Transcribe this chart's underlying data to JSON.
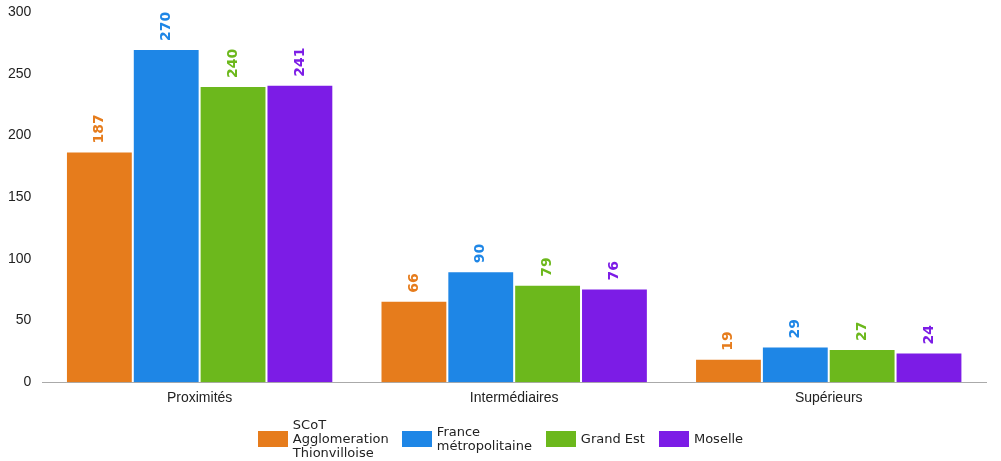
{
  "chart_data": {
    "type": "bar",
    "categories": [
      "Proximités",
      "Intermédiaires",
      "Supérieurs"
    ],
    "series": [
      {
        "name": "SCoT Agglomeration Thionvilloise",
        "color": "#e67c1c",
        "values": [
          187,
          66,
          19
        ]
      },
      {
        "name": "France métropolitaine",
        "color": "#1e86e6",
        "values": [
          270,
          90,
          29
        ]
      },
      {
        "name": "Grand Est",
        "color": "#6cb81c",
        "values": [
          240,
          79,
          27
        ]
      },
      {
        "name": "Moselle",
        "color": "#7c1ce6",
        "values": [
          241,
          76,
          24
        ]
      }
    ],
    "ylim": [
      0,
      300
    ],
    "yticks": [
      0,
      50,
      100,
      150,
      200,
      250,
      300
    ],
    "grid": false,
    "legend": "bottom",
    "data_labels": true
  }
}
